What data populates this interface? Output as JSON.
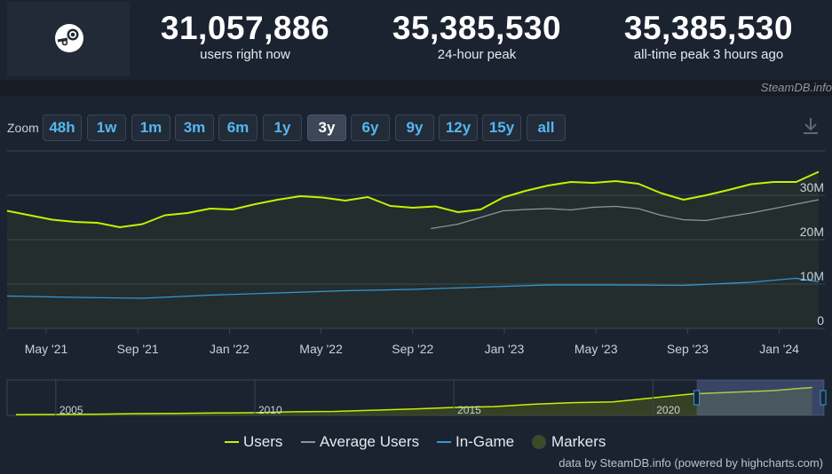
{
  "header": {
    "logo": "steam-logo-icon",
    "stats": [
      {
        "value": "31,057,886",
        "label": "users right now"
      },
      {
        "value": "35,385,530",
        "label": "24-hour peak"
      },
      {
        "value": "35,385,530",
        "label": "all-time peak 3 hours ago"
      }
    ],
    "credit": "SteamDB.info"
  },
  "zoom": {
    "label": "Zoom",
    "buttons": [
      "48h",
      "1w",
      "1m",
      "3m",
      "6m",
      "1y",
      "3y",
      "6y",
      "9y",
      "12y",
      "15y",
      "all"
    ],
    "active": "3y",
    "download_icon": "download-icon"
  },
  "chart_data": {
    "type": "line",
    "x_ticks": [
      "May '21",
      "Sep '21",
      "Jan '22",
      "May '22",
      "Sep '22",
      "Jan '23",
      "May '23",
      "Sep '23",
      "Jan '24"
    ],
    "y_ticks": [
      "0",
      "10M",
      "20M",
      "30M"
    ],
    "y_tick_values": [
      0,
      10,
      20,
      30
    ],
    "ylim": [
      0,
      40
    ],
    "grid": true,
    "series": [
      {
        "name": "Users",
        "color": "#c8f000",
        "x": [
          0,
          1,
          2,
          3,
          4,
          5,
          6,
          7,
          8,
          9,
          10,
          11,
          12,
          13,
          14,
          15,
          16,
          17,
          18,
          19,
          20,
          21,
          22,
          23,
          24,
          25,
          26,
          27,
          28,
          29,
          30,
          31,
          32,
          33,
          34,
          35,
          36
        ],
        "values": [
          26.5,
          25.5,
          24.5,
          24,
          23.8,
          22.8,
          23.5,
          25.5,
          26,
          27,
          26.8,
          28,
          29,
          29.8,
          29.5,
          28.8,
          29.6,
          27.6,
          27.2,
          27.5,
          26.2,
          26.8,
          29.5,
          31,
          32.2,
          33,
          32.8,
          33.2,
          32.6,
          30.5,
          29,
          30,
          31.2,
          32.5,
          33,
          33,
          35.3
        ]
      },
      {
        "name": "Average Users",
        "color": "#8e959e",
        "x": [
          18.8,
          20,
          21,
          22,
          23,
          24,
          25,
          26,
          27,
          28,
          29,
          30,
          31,
          32,
          33,
          34,
          35,
          36
        ],
        "values": [
          22.5,
          23.5,
          25,
          26.5,
          26.8,
          27,
          26.7,
          27.3,
          27.5,
          27,
          25.5,
          24.5,
          24.3,
          25.2,
          26,
          27,
          28,
          29
        ]
      },
      {
        "name": "In-Game",
        "color": "#3497d8",
        "x": [
          0,
          3,
          6,
          9,
          12,
          15,
          18,
          21,
          24,
          27,
          30,
          33,
          35,
          36
        ],
        "values": [
          7.3,
          7,
          6.8,
          7.5,
          8,
          8.5,
          8.8,
          9.3,
          9.8,
          9.8,
          9.7,
          10.4,
          11.3,
          10.5
        ]
      }
    ],
    "legend": {
      "placement": "bottom-center",
      "entries": [
        {
          "name": "Users",
          "marker": "line",
          "color": "#c8f000"
        },
        {
          "name": "Average Users",
          "marker": "line",
          "color": "#8e959e"
        },
        {
          "name": "In-Game",
          "marker": "line",
          "color": "#3497d8"
        },
        {
          "name": "Markers",
          "marker": "circle",
          "color": "#3d4a2a"
        }
      ]
    },
    "navigator": {
      "labels": [
        "2005",
        "2010",
        "2015",
        "2020"
      ],
      "x": [
        2004,
        2005,
        2006,
        2007,
        2008,
        2009,
        2010,
        2011,
        2012,
        2013,
        2014,
        2015,
        2016,
        2017,
        2018,
        2019,
        2020,
        2021,
        2022,
        2023,
        2024
      ],
      "values": [
        1,
        1.2,
        1.5,
        2.2,
        2.5,
        3,
        3.5,
        4.5,
        5,
        6.5,
        8,
        10,
        11,
        14,
        16,
        17,
        22,
        27,
        29,
        31,
        35
      ],
      "selected_from": 2021.1
    }
  },
  "footer": {
    "credit": "data by SteamDB.info (powered by highcharts.com)"
  }
}
